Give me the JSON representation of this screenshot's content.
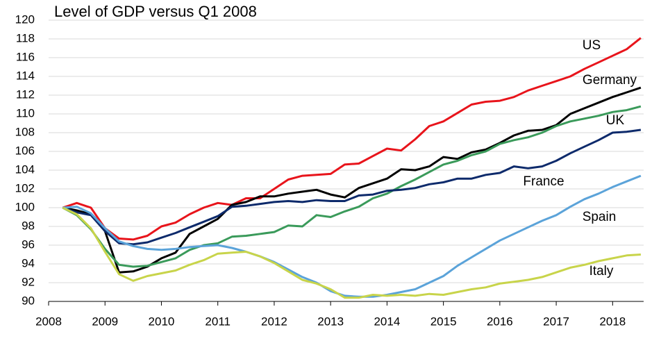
{
  "chart_data": {
    "type": "line",
    "title": "Level of GDP versus Q1 2008",
    "x": [
      2008.25,
      2008.5,
      2008.75,
      2009,
      2009.25,
      2009.5,
      2009.75,
      2010,
      2010.25,
      2010.5,
      2010.75,
      2011,
      2011.25,
      2011.5,
      2011.75,
      2012,
      2012.25,
      2012.5,
      2012.75,
      2013,
      2013.25,
      2013.5,
      2013.75,
      2014,
      2014.25,
      2014.5,
      2014.75,
      2015,
      2015.25,
      2015.5,
      2015.75,
      2016,
      2016.25,
      2016.5,
      2016.75,
      2017,
      2017.25,
      2017.5,
      2017.75,
      2018,
      2018.25,
      2018.5
    ],
    "series": [
      {
        "name": "US",
        "color": "#e8141b",
        "values": [
          100,
          100.5,
          100,
          97.8,
          96.7,
          96.6,
          97,
          98,
          98.4,
          99.3,
          100,
          100.5,
          100.3,
          101,
          101,
          102,
          103,
          103.4,
          103.5,
          103.6,
          104.6,
          104.7,
          105.5,
          106.3,
          106.1,
          107.3,
          108.7,
          109.2,
          110.1,
          111,
          111.3,
          111.4,
          111.8,
          112.5,
          113,
          113.5,
          114,
          114.8,
          115.5,
          116.2,
          116.9,
          118.1
        ]
      },
      {
        "name": "Germany",
        "color": "#000000",
        "values": [
          100,
          99.7,
          99.3,
          97.5,
          93.1,
          93.2,
          93.7,
          94.6,
          95.2,
          97.2,
          98,
          98.8,
          100.3,
          100.6,
          101.2,
          101.2,
          101.5,
          101.7,
          101.9,
          101.4,
          101.1,
          102.1,
          102.6,
          103.1,
          104.1,
          104,
          104.4,
          105.4,
          105.2,
          105.9,
          106.2,
          106.9,
          107.7,
          108.2,
          108.3,
          108.8,
          110,
          110.6,
          111.2,
          111.8,
          112.3,
          112.8
        ]
      },
      {
        "name": "UK",
        "color": "#3a9a5a",
        "values": [
          100,
          99.2,
          97.7,
          95.6,
          93.9,
          93.7,
          93.8,
          94.2,
          94.6,
          95.5,
          96,
          96.2,
          96.9,
          97,
          97.2,
          97.4,
          98.1,
          98,
          99.2,
          99,
          99.6,
          100.1,
          101,
          101.5,
          102.3,
          103,
          103.8,
          104.6,
          105,
          105.6,
          106,
          106.8,
          107.2,
          107.5,
          108,
          108.7,
          109.2,
          109.5,
          109.8,
          110.2,
          110.4,
          110.8
        ]
      },
      {
        "name": "France",
        "color": "#0d2a6b",
        "values": [
          100,
          99.5,
          99.2,
          97.5,
          96.2,
          96.1,
          96.3,
          96.8,
          97.3,
          97.9,
          98.5,
          99.1,
          100.1,
          100.2,
          100.4,
          100.6,
          100.7,
          100.6,
          100.8,
          100.7,
          100.7,
          101.3,
          101.4,
          101.8,
          101.9,
          102.1,
          102.5,
          102.7,
          103.1,
          103.1,
          103.5,
          103.7,
          104.4,
          104.2,
          104.4,
          105,
          105.8,
          106.5,
          107.2,
          108,
          108.1,
          108.3
        ]
      },
      {
        "name": "Spain",
        "color": "#5ba3d9",
        "values": [
          100,
          100.1,
          99.4,
          97.8,
          96.4,
          95.9,
          95.6,
          95.5,
          95.6,
          95.8,
          95.9,
          96,
          95.7,
          95.3,
          94.8,
          94.2,
          93.4,
          92.6,
          92,
          91.1,
          90.6,
          90.5,
          90.5,
          90.7,
          91,
          91.3,
          92,
          92.7,
          93.8,
          94.7,
          95.6,
          96.5,
          97.2,
          97.9,
          98.6,
          99.2,
          100.1,
          100.9,
          101.5,
          102.2,
          102.8,
          103.4
        ]
      },
      {
        "name": "Italy",
        "color": "#c8d44a",
        "values": [
          100,
          99.3,
          97.8,
          95.3,
          92.9,
          92.2,
          92.7,
          93,
          93.3,
          93.9,
          94.4,
          95.1,
          95.2,
          95.3,
          94.8,
          94.1,
          93.2,
          92.3,
          91.9,
          91.3,
          90.4,
          90.4,
          90.7,
          90.6,
          90.7,
          90.6,
          90.8,
          90.7,
          91,
          91.3,
          91.5,
          91.9,
          92.1,
          92.3,
          92.6,
          93.1,
          93.6,
          93.9,
          94.3,
          94.6,
          94.9,
          95
        ]
      }
    ],
    "xlim": [
      2008,
      2018.55
    ],
    "xticks": [
      2008,
      2009,
      2010,
      2011,
      2012,
      2013,
      2014,
      2015,
      2016,
      2017,
      2018
    ],
    "ylim": [
      90,
      120
    ],
    "yticks": [
      90,
      92,
      94,
      96,
      98,
      100,
      102,
      104,
      106,
      108,
      110,
      112,
      114,
      116,
      118,
      120
    ],
    "grid": true
  }
}
